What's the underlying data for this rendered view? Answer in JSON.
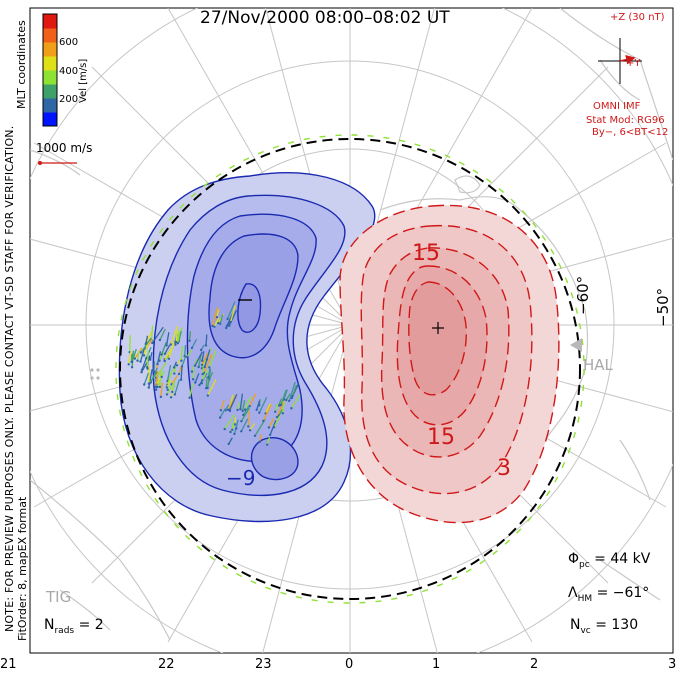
{
  "title": "27/Nov/2000 08:00–08:02 UT",
  "note": "NOTE: FOR PREVIEW PURPOSES ONLY. PLEASE CONTACT VT-SD STAFF FOR VERIFICATION.",
  "fit_info": "FitOrder: 8, mapEX format",
  "coords_label": "MLT coordinates",
  "colorbar": {
    "label": "Vel [m/s]",
    "ticks": [
      "600",
      "400",
      "200"
    ],
    "colors": [
      "#0015ff",
      "#2f66a6",
      "#3fa06a",
      "#8ee234",
      "#e0e018",
      "#f0a018",
      "#f06018",
      "#e01810"
    ]
  },
  "vector_scale": "1000 m/s",
  "imf": {
    "magnitude": "+Z (30 nT)",
    "y_axis": "+Y",
    "source": "OMNI IMF",
    "stat_mod": "Stat Mod: RG96",
    "condition": "By−, 6<BT<12"
  },
  "contour_labels": {
    "neg_a": "−9",
    "pos_a": "15",
    "pos_b": "15",
    "pos_c": "3"
  },
  "latitude_labels": [
    "−60°",
    "−50°"
  ],
  "stations": [
    "HAL",
    "TIG"
  ],
  "stats": {
    "phi_pc_sym": "Φ",
    "phi_pc_sub": "pc",
    "phi_pc_val": "= 44 kV",
    "lambda_hm_sym": "Λ",
    "lambda_hm_sub": "HM",
    "lambda_hm_val": "= −61°",
    "n_vc_sym": "N",
    "n_vc_sub": "vc",
    "n_vc_val": "= 130",
    "n_rads_sym": "N",
    "n_rads_sub": "rads",
    "n_rads_val": "= 2"
  },
  "mlt_ticks": [
    "21",
    "22",
    "23",
    "0",
    "1",
    "2",
    "3"
  ],
  "colors": {
    "negative": "#1a2ab0",
    "positive": "#d01818",
    "boundary": "#8ee234",
    "land": "#c8c8c8"
  }
}
